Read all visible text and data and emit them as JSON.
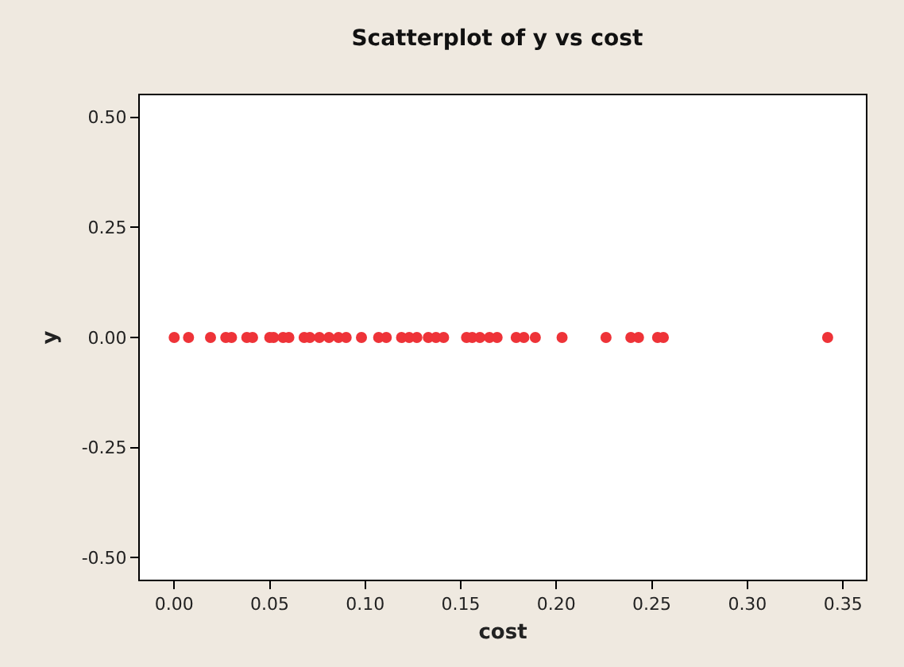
{
  "chart_data": {
    "type": "scatter",
    "title": "Scatterplot of y vs cost",
    "xlabel": "cost",
    "ylabel": "y",
    "x": [
      0.0,
      0.0075,
      0.019,
      0.027,
      0.03,
      0.038,
      0.041,
      0.05,
      0.052,
      0.057,
      0.06,
      0.068,
      0.071,
      0.076,
      0.081,
      0.086,
      0.09,
      0.098,
      0.107,
      0.111,
      0.119,
      0.123,
      0.127,
      0.133,
      0.137,
      0.141,
      0.153,
      0.156,
      0.16,
      0.165,
      0.169,
      0.179,
      0.183,
      0.189,
      0.203,
      0.226,
      0.239,
      0.243,
      0.253,
      0.256,
      0.342
    ],
    "series": [
      {
        "color": "#ee3338",
        "values": [
          0,
          0,
          0,
          0,
          0,
          0,
          0,
          0,
          0,
          0,
          0,
          0,
          0,
          0,
          0,
          0,
          0,
          0,
          0,
          0,
          0,
          0,
          0,
          0,
          0,
          0,
          0,
          0,
          0,
          0,
          0,
          0,
          0,
          0,
          0,
          0,
          0,
          0,
          0,
          0,
          0
        ]
      }
    ],
    "xlim": [
      -0.018,
      0.362
    ],
    "xticks": [
      {
        "value": 0,
        "label": "0.00"
      },
      0.05,
      {
        "value": 0.1,
        "label": "0.10"
      },
      0.15,
      {
        "value": 0.2,
        "label": "0.20"
      },
      0.25,
      {
        "value": 0.3,
        "label": "0.30"
      },
      0.35
    ],
    "ylim": [
      -0.55,
      0.55
    ],
    "yticks": [
      {
        "value": -0.5,
        "label": "-0.50"
      },
      -0.25,
      {
        "value": 0,
        "label": "0.00"
      },
      0.25,
      {
        "value": 0.5,
        "label": "0.50"
      }
    ],
    "marker": "circle",
    "grid": false
  }
}
